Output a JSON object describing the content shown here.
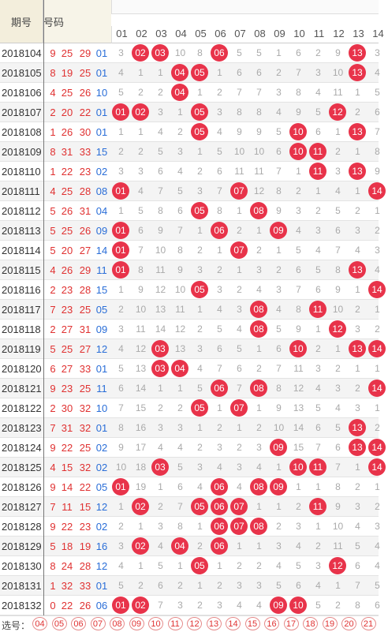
{
  "header": {
    "issue_label": "期号",
    "numbers_label": "号码"
  },
  "columns": [
    "01",
    "02",
    "03",
    "04",
    "05",
    "06",
    "07",
    "08",
    "09",
    "10",
    "11",
    "12",
    "13",
    "14"
  ],
  "rows": [
    {
      "issue": "2018104",
      "reds": [
        "9",
        "25",
        "29"
      ],
      "blue": "01",
      "cells": [
        "3",
        "02",
        "03",
        "10",
        "8",
        "06",
        "5",
        "5",
        "1",
        "6",
        "2",
        "9",
        "13",
        "3"
      ]
    },
    {
      "issue": "2018105",
      "reds": [
        "8",
        "19",
        "25"
      ],
      "blue": "01",
      "cells": [
        "4",
        "1",
        "1",
        "04",
        "05",
        "1",
        "6",
        "6",
        "2",
        "7",
        "3",
        "10",
        "13",
        "4"
      ]
    },
    {
      "issue": "2018106",
      "reds": [
        "4",
        "25",
        "26"
      ],
      "blue": "10",
      "cells": [
        "5",
        "2",
        "2",
        "04",
        "1",
        "2",
        "7",
        "7",
        "3",
        "8",
        "4",
        "11",
        "1",
        "5"
      ]
    },
    {
      "issue": "2018107",
      "reds": [
        "2",
        "20",
        "22"
      ],
      "blue": "01",
      "cells": [
        "01",
        "02",
        "3",
        "1",
        "05",
        "3",
        "8",
        "8",
        "4",
        "9",
        "5",
        "12",
        "2",
        "6"
      ]
    },
    {
      "issue": "2018108",
      "reds": [
        "1",
        "26",
        "30"
      ],
      "blue": "01",
      "cells": [
        "1",
        "1",
        "4",
        "2",
        "05",
        "4",
        "9",
        "9",
        "5",
        "10",
        "6",
        "1",
        "13",
        "7"
      ]
    },
    {
      "issue": "2018109",
      "reds": [
        "8",
        "31",
        "33"
      ],
      "blue": "15",
      "cells": [
        "2",
        "2",
        "5",
        "3",
        "1",
        "5",
        "10",
        "10",
        "6",
        "10",
        "11",
        "2",
        "1",
        "8"
      ]
    },
    {
      "issue": "2018110",
      "reds": [
        "1",
        "22",
        "23"
      ],
      "blue": "02",
      "cells": [
        "3",
        "3",
        "6",
        "4",
        "2",
        "6",
        "11",
        "11",
        "7",
        "1",
        "11",
        "3",
        "13",
        "9"
      ]
    },
    {
      "issue": "2018111",
      "reds": [
        "4",
        "25",
        "28"
      ],
      "blue": "08",
      "cells": [
        "01",
        "4",
        "7",
        "5",
        "3",
        "7",
        "07",
        "12",
        "8",
        "2",
        "1",
        "4",
        "1",
        "14"
      ]
    },
    {
      "issue": "2018112",
      "reds": [
        "5",
        "26",
        "31"
      ],
      "blue": "04",
      "cells": [
        "1",
        "5",
        "8",
        "6",
        "05",
        "8",
        "1",
        "08",
        "9",
        "3",
        "2",
        "5",
        "2",
        "1"
      ]
    },
    {
      "issue": "2018113",
      "reds": [
        "5",
        "25",
        "26"
      ],
      "blue": "09",
      "cells": [
        "01",
        "6",
        "9",
        "7",
        "1",
        "06",
        "2",
        "1",
        "09",
        "4",
        "3",
        "6",
        "3",
        "2"
      ]
    },
    {
      "issue": "2018114",
      "reds": [
        "5",
        "20",
        "27"
      ],
      "blue": "14",
      "cells": [
        "01",
        "7",
        "10",
        "8",
        "2",
        "1",
        "07",
        "2",
        "1",
        "5",
        "4",
        "7",
        "4",
        "3"
      ]
    },
    {
      "issue": "2018115",
      "reds": [
        "4",
        "26",
        "29"
      ],
      "blue": "11",
      "cells": [
        "01",
        "8",
        "11",
        "9",
        "3",
        "2",
        "1",
        "3",
        "2",
        "6",
        "5",
        "8",
        "13",
        "4"
      ]
    },
    {
      "issue": "2018116",
      "reds": [
        "2",
        "23",
        "28"
      ],
      "blue": "15",
      "cells": [
        "1",
        "9",
        "12",
        "10",
        "05",
        "3",
        "2",
        "4",
        "3",
        "7",
        "6",
        "9",
        "1",
        "14"
      ]
    },
    {
      "issue": "2018117",
      "reds": [
        "7",
        "23",
        "25"
      ],
      "blue": "05",
      "cells": [
        "2",
        "10",
        "13",
        "11",
        "1",
        "4",
        "3",
        "08",
        "4",
        "8",
        "11",
        "10",
        "2",
        "1"
      ]
    },
    {
      "issue": "2018118",
      "reds": [
        "2",
        "27",
        "31"
      ],
      "blue": "09",
      "cells": [
        "3",
        "11",
        "14",
        "12",
        "2",
        "5",
        "4",
        "08",
        "5",
        "9",
        "1",
        "12",
        "3",
        "2"
      ]
    },
    {
      "issue": "2018119",
      "reds": [
        "5",
        "25",
        "27"
      ],
      "blue": "12",
      "cells": [
        "4",
        "12",
        "03",
        "13",
        "3",
        "6",
        "5",
        "1",
        "6",
        "10",
        "2",
        "1",
        "13",
        "14"
      ]
    },
    {
      "issue": "2018120",
      "reds": [
        "6",
        "27",
        "33"
      ],
      "blue": "01",
      "cells": [
        "5",
        "13",
        "03",
        "04",
        "4",
        "7",
        "6",
        "2",
        "7",
        "11",
        "3",
        "2",
        "1",
        "1"
      ]
    },
    {
      "issue": "2018121",
      "reds": [
        "9",
        "23",
        "25"
      ],
      "blue": "11",
      "cells": [
        "6",
        "14",
        "1",
        "1",
        "5",
        "06",
        "7",
        "08",
        "8",
        "12",
        "4",
        "3",
        "2",
        "14"
      ]
    },
    {
      "issue": "2018122",
      "reds": [
        "2",
        "30",
        "32"
      ],
      "blue": "10",
      "cells": [
        "7",
        "15",
        "2",
        "2",
        "05",
        "1",
        "07",
        "1",
        "9",
        "13",
        "5",
        "4",
        "3",
        "1"
      ]
    },
    {
      "issue": "2018123",
      "reds": [
        "7",
        "31",
        "32"
      ],
      "blue": "01",
      "cells": [
        "8",
        "16",
        "3",
        "3",
        "1",
        "2",
        "1",
        "2",
        "10",
        "14",
        "6",
        "5",
        "13",
        "2"
      ]
    },
    {
      "issue": "2018124",
      "reds": [
        "9",
        "22",
        "25"
      ],
      "blue": "02",
      "cells": [
        "9",
        "17",
        "4",
        "4",
        "2",
        "3",
        "2",
        "3",
        "09",
        "15",
        "7",
        "6",
        "13",
        "14"
      ]
    },
    {
      "issue": "2018125",
      "reds": [
        "4",
        "15",
        "32"
      ],
      "blue": "02",
      "cells": [
        "10",
        "18",
        "03",
        "5",
        "3",
        "4",
        "3",
        "4",
        "1",
        "10",
        "11",
        "7",
        "1",
        "14"
      ]
    },
    {
      "issue": "2018126",
      "reds": [
        "9",
        "14",
        "22"
      ],
      "blue": "05",
      "cells": [
        "01",
        "19",
        "1",
        "6",
        "4",
        "06",
        "4",
        "08",
        "09",
        "1",
        "1",
        "8",
        "2",
        "1"
      ]
    },
    {
      "issue": "2018127",
      "reds": [
        "7",
        "11",
        "15"
      ],
      "blue": "12",
      "cells": [
        "1",
        "02",
        "2",
        "7",
        "05",
        "06",
        "07",
        "1",
        "1",
        "2",
        "11",
        "9",
        "3",
        "2"
      ]
    },
    {
      "issue": "2018128",
      "reds": [
        "9",
        "22",
        "23"
      ],
      "blue": "02",
      "cells": [
        "2",
        "1",
        "3",
        "8",
        "1",
        "06",
        "07",
        "08",
        "2",
        "3",
        "1",
        "10",
        "4",
        "3"
      ]
    },
    {
      "issue": "2018129",
      "reds": [
        "5",
        "18",
        "19"
      ],
      "blue": "16",
      "cells": [
        "3",
        "02",
        "4",
        "04",
        "2",
        "06",
        "1",
        "1",
        "3",
        "4",
        "2",
        "11",
        "5",
        "4"
      ]
    },
    {
      "issue": "2018130",
      "reds": [
        "8",
        "24",
        "28"
      ],
      "blue": "12",
      "cells": [
        "4",
        "1",
        "5",
        "1",
        "05",
        "1",
        "2",
        "2",
        "4",
        "5",
        "3",
        "12",
        "6",
        "4"
      ]
    },
    {
      "issue": "2018131",
      "reds": [
        "1",
        "32",
        "33"
      ],
      "blue": "01",
      "cells": [
        "5",
        "2",
        "6",
        "2",
        "1",
        "2",
        "3",
        "3",
        "5",
        "6",
        "4",
        "1",
        "7",
        "5"
      ]
    },
    {
      "issue": "2018132",
      "reds": [
        "0",
        "22",
        "26"
      ],
      "blue": "06",
      "cells": [
        "01",
        "02",
        "7",
        "3",
        "2",
        "3",
        "4",
        "4",
        "09",
        "10",
        "5",
        "2",
        "8",
        "6"
      ]
    }
  ],
  "footer": {
    "select_label": "选号：",
    "picks": [
      "04",
      "05",
      "06",
      "07",
      "08",
      "09",
      "10",
      "11",
      "12",
      "13",
      "14",
      "15",
      "16",
      "17",
      "18",
      "19",
      "20",
      "21"
    ]
  }
}
